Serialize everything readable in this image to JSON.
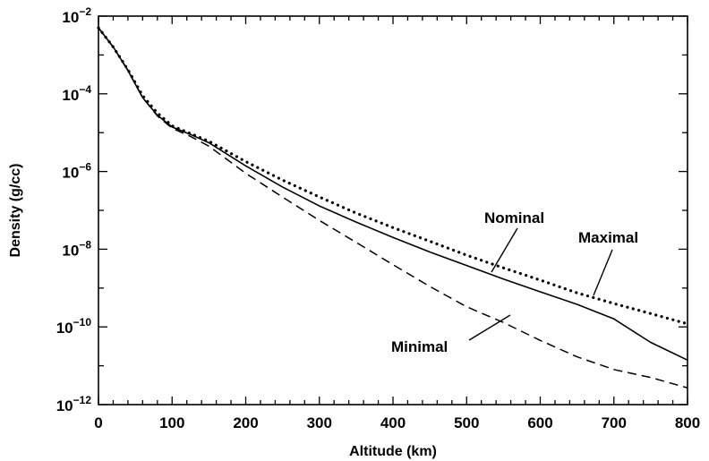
{
  "chart_data": {
    "type": "line",
    "title": "",
    "xlabel": "Altitude (km)",
    "ylabel": "Density (g/cc)",
    "xlim": [
      0,
      800
    ],
    "ylim": [
      1e-12,
      0.01
    ],
    "yscale": "log",
    "grid": false,
    "x_ticks": [
      "0",
      "100",
      "200",
      "300",
      "400",
      "500",
      "600",
      "700",
      "800"
    ],
    "y_ticks": [
      {
        "base": "10",
        "exp": "−2",
        "value": 0.01
      },
      {
        "base": "10",
        "exp": "−4",
        "value": 0.0001
      },
      {
        "base": "10",
        "exp": "−6",
        "value": 1e-06
      },
      {
        "base": "10",
        "exp": "−8",
        "value": 1e-08
      },
      {
        "base": "10",
        "exp": "−10",
        "value": 1e-10
      },
      {
        "base": "10",
        "exp": "−12",
        "value": 1e-12
      }
    ],
    "series": [
      {
        "name": "Nominal",
        "style": "solid",
        "x": [
          0,
          20,
          40,
          60,
          80,
          100,
          125,
          150,
          200,
          250,
          300,
          350,
          400,
          450,
          500,
          550,
          600,
          650,
          700,
          750,
          800
        ],
        "y": [
          0.005,
          0.0016,
          0.0004,
          8e-05,
          2.8e-05,
          1.4e-05,
          9e-06,
          5.5e-06,
          1.4e-06,
          4e-07,
          1.3e-07,
          5e-08,
          2e-08,
          8.5e-09,
          3.8e-09,
          1.7e-09,
          8e-10,
          3.8e-10,
          1.6e-10,
          4e-11,
          1.4e-11
        ]
      },
      {
        "name": "Maximal",
        "style": "dotted",
        "x": [
          0,
          20,
          40,
          60,
          80,
          100,
          125,
          150,
          200,
          250,
          300,
          350,
          400,
          450,
          500,
          550,
          600,
          650,
          700,
          750,
          800
        ],
        "y": [
          0.005,
          0.0016,
          0.00042,
          9e-05,
          3.2e-05,
          1.5e-05,
          9.5e-06,
          6e-06,
          1.8e-06,
          6e-07,
          2.2e-07,
          8.5e-08,
          3.6e-08,
          1.6e-08,
          7e-09,
          3.3e-09,
          1.6e-09,
          7.5e-10,
          4e-10,
          2.2e-10,
          1.2e-10
        ]
      },
      {
        "name": "Minimal",
        "style": "dashed",
        "x": [
          0,
          20,
          40,
          60,
          80,
          100,
          125,
          150,
          200,
          250,
          300,
          350,
          400,
          450,
          500,
          550,
          600,
          650,
          700,
          750,
          800
        ],
        "y": [
          0.005,
          0.0016,
          0.0004,
          8e-05,
          2.7e-05,
          1.3e-05,
          8e-06,
          4.5e-06,
          9e-07,
          2.2e-07,
          5.5e-08,
          1.5e-08,
          4e-09,
          1.1e-09,
          3.3e-10,
          1.3e-10,
          4.5e-11,
          1.7e-11,
          8e-12,
          5e-12,
          2.7e-12
        ]
      }
    ],
    "annotations": [
      "Nominal",
      "Maximal",
      "Minimal"
    ]
  }
}
